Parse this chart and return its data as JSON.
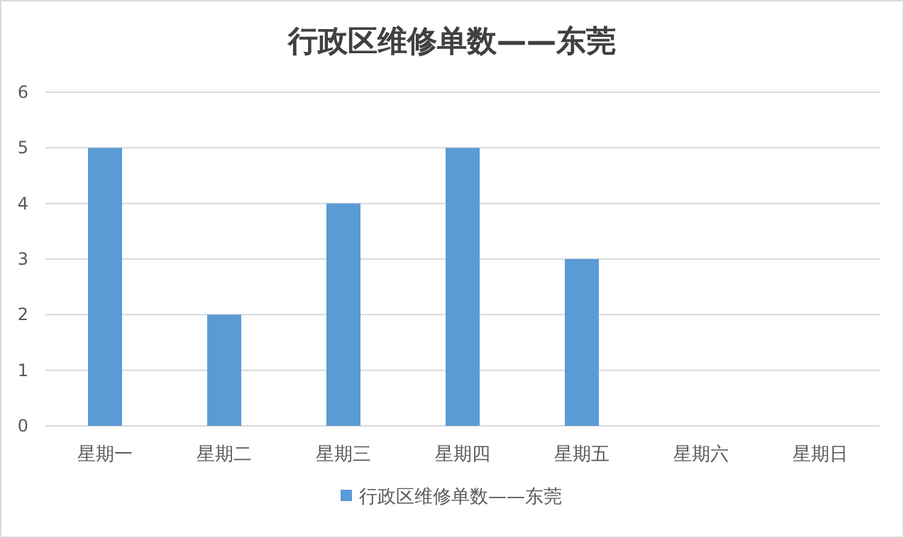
{
  "chart_data": {
    "type": "bar",
    "title": "行政区维修单数——东莞",
    "categories": [
      "星期一",
      "星期二",
      "星期三",
      "星期四",
      "星期五",
      "星期六",
      "星期日"
    ],
    "series": [
      {
        "name": "行政区维修单数——东莞",
        "color": "#5b9bd5",
        "values": [
          5,
          2,
          4,
          5,
          3,
          0,
          0
        ]
      }
    ],
    "ylim": [
      0,
      6
    ],
    "yticks": [
      0,
      1,
      2,
      3,
      4,
      5,
      6
    ],
    "grid": "y",
    "legend": "bottom"
  }
}
